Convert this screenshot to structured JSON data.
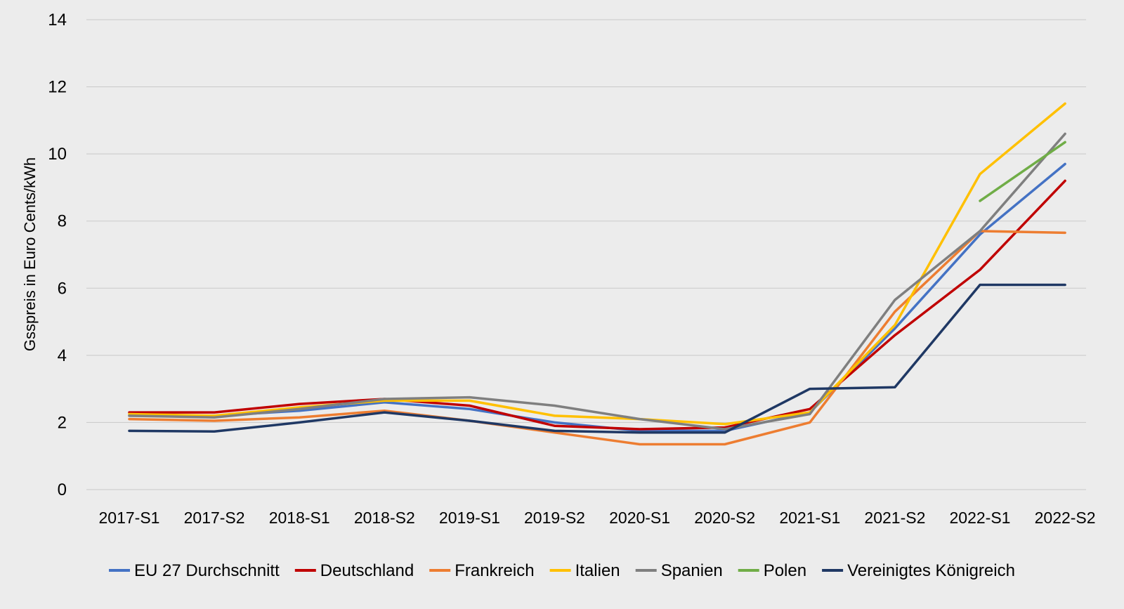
{
  "chart_data": {
    "type": "line",
    "title": "",
    "xlabel": "",
    "ylabel": "Gsspreis in Euro Cents/kWh",
    "ylim": [
      0,
      14
    ],
    "yticks": [
      0,
      2,
      4,
      6,
      8,
      10,
      12,
      14
    ],
    "grid": true,
    "legend": "bottom",
    "categories": [
      "2017-S1",
      "2017-S2",
      "2018-S1",
      "2018-S2",
      "2019-S1",
      "2019-S2",
      "2020-S1",
      "2020-S2",
      "2021-S1",
      "2021-S2",
      "2022-S1",
      "2022-S2"
    ],
    "series": [
      {
        "name": "EU 27 Durchschnitt",
        "color": "#4472c4",
        "values": [
          2.2,
          2.2,
          2.35,
          2.6,
          2.4,
          2.0,
          1.75,
          1.75,
          2.3,
          4.8,
          7.6,
          9.7
        ]
      },
      {
        "name": "Deutschland",
        "color": "#c00000",
        "values": [
          2.3,
          2.3,
          2.55,
          2.7,
          2.5,
          1.9,
          1.8,
          1.85,
          2.4,
          4.6,
          6.55,
          9.2
        ]
      },
      {
        "name": "Frankreich",
        "color": "#ed7d31",
        "values": [
          2.1,
          2.05,
          2.15,
          2.35,
          2.05,
          1.7,
          1.35,
          1.35,
          2.0,
          5.3,
          7.7,
          7.65
        ]
      },
      {
        "name": "Italien",
        "color": "#ffc000",
        "values": [
          2.25,
          2.2,
          2.45,
          2.65,
          2.65,
          2.2,
          2.1,
          1.95,
          2.3,
          4.9,
          9.4,
          11.5
        ]
      },
      {
        "name": "Spanien",
        "color": "#7f7f7f",
        "values": [
          2.2,
          2.15,
          2.4,
          2.7,
          2.75,
          2.5,
          2.1,
          1.8,
          2.25,
          5.65,
          7.7,
          10.6
        ]
      },
      {
        "name": "Polen",
        "color": "#70ad47",
        "values": [
          null,
          null,
          null,
          null,
          null,
          null,
          null,
          null,
          null,
          null,
          8.6,
          10.35
        ]
      },
      {
        "name": "Vereinigtes Königreich",
        "color": "#1f3864",
        "values": [
          1.75,
          1.73,
          2.0,
          2.3,
          2.05,
          1.75,
          1.7,
          1.7,
          3.0,
          3.05,
          6.1,
          6.1
        ]
      }
    ]
  }
}
